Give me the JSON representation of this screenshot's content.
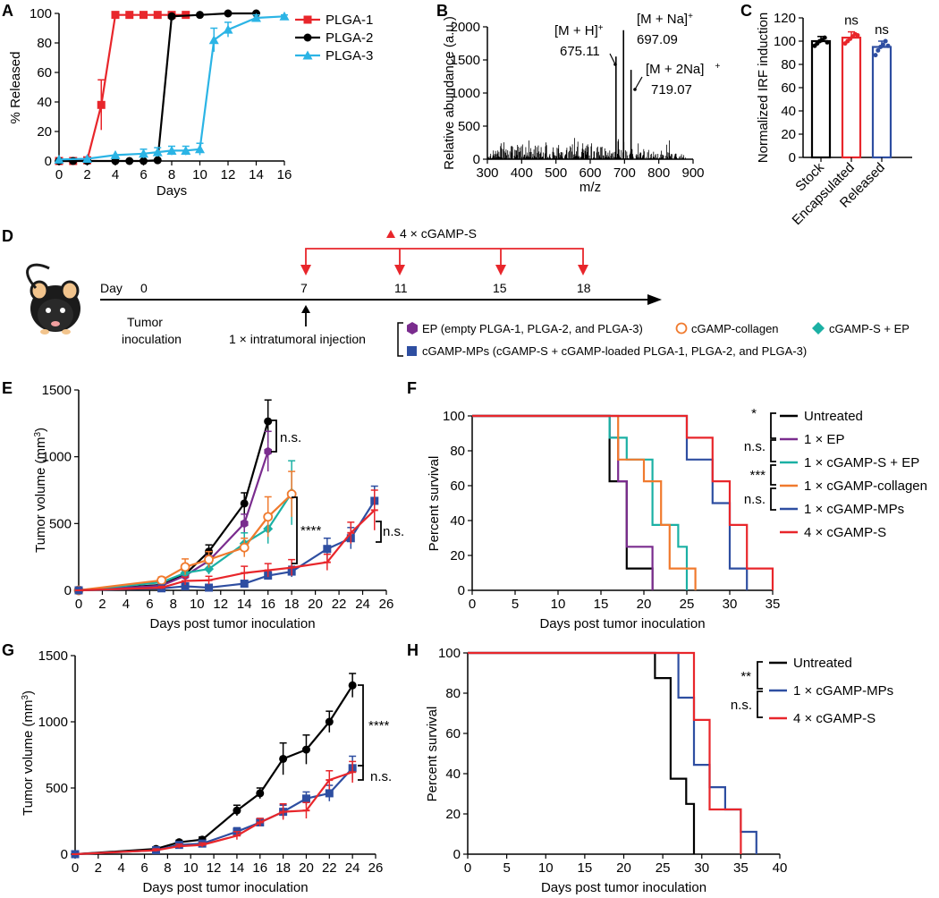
{
  "panel_labels": {
    "A": "A",
    "B": "B",
    "C": "C",
    "D": "D",
    "E": "E",
    "F": "F",
    "G": "G",
    "H": "H"
  },
  "colors": {
    "plga1": "#e8262b",
    "plga2": "#000000",
    "plga3": "#2bb4e5",
    "black": "#000000",
    "purple": "#7a2c8e",
    "teal": "#1bb0a4",
    "orange": "#f07a2e",
    "blue": "#2e4ea1",
    "red": "#e8262b"
  },
  "chart_data": [
    {
      "id": "A",
      "type": "line",
      "xlabel": "Days",
      "ylabel": "% Released",
      "xlim": [
        0,
        16
      ],
      "ylim": [
        0,
        100
      ],
      "xticks": [
        0,
        2,
        4,
        6,
        8,
        10,
        12,
        14,
        16
      ],
      "yticks": [
        0,
        20,
        40,
        60,
        80,
        100
      ],
      "series": [
        {
          "name": "PLGA-1",
          "color": "#e8262b",
          "marker": "square",
          "x": [
            0,
            1,
            2,
            3,
            4,
            5,
            6,
            7,
            8,
            9
          ],
          "y": [
            0,
            0,
            0.5,
            38,
            99,
            99,
            99,
            99,
            99,
            99
          ],
          "err": [
            0,
            0,
            0,
            17,
            0,
            0,
            0,
            0,
            0,
            0
          ]
        },
        {
          "name": "PLGA-2",
          "color": "#000000",
          "marker": "circle",
          "x": [
            0,
            1,
            2,
            4,
            5,
            6,
            7,
            8,
            10,
            12,
            14
          ],
          "y": [
            0,
            0,
            0,
            0,
            0,
            0,
            0.5,
            98,
            99,
            100,
            100
          ],
          "err": [
            0,
            0,
            0,
            0,
            0,
            0,
            0,
            0,
            0,
            0,
            0
          ]
        },
        {
          "name": "PLGA-3",
          "color": "#2bb4e5",
          "marker": "triangle",
          "x": [
            0,
            2,
            4,
            6,
            7,
            8,
            9,
            10,
            11,
            12,
            14,
            16
          ],
          "y": [
            1,
            1.5,
            4,
            5,
            6,
            7,
            7,
            8,
            82,
            89,
            97,
            98
          ],
          "err": [
            0,
            0,
            0,
            3,
            3,
            3,
            3,
            4,
            8,
            5,
            2,
            1
          ]
        }
      ]
    },
    {
      "id": "B",
      "type": "spectrum",
      "xlabel": "m/z",
      "ylabel": "Relative abundance (a.u.)",
      "xlim": [
        300,
        900
      ],
      "ylim": [
        0,
        2000
      ],
      "xticks": [
        300,
        400,
        500,
        600,
        700,
        800,
        900
      ],
      "yticks": [
        0,
        500,
        1000,
        1500,
        2000
      ],
      "peaks": [
        {
          "x": 675.11,
          "y": 1550
        },
        {
          "x": 697.09,
          "y": 1950
        },
        {
          "x": 719.07,
          "y": 1350
        }
      ],
      "annotations": [
        {
          "ion": "[M + H]",
          "charge": "+",
          "mz": "675.11"
        },
        {
          "ion": "[M + Na]",
          "charge": "+",
          "mz": "697.09"
        },
        {
          "ion": "[M + 2Na]",
          "charge": "+",
          "mz": "719.07"
        }
      ]
    },
    {
      "id": "C",
      "type": "bar",
      "ylabel": "Normalized IRF induction",
      "ylim": [
        0,
        120
      ],
      "yticks": [
        0,
        20,
        40,
        60,
        80,
        100,
        120
      ],
      "categories": [
        "Stock",
        "Encapsulated",
        "Released"
      ],
      "values": [
        100,
        103,
        95
      ],
      "errors": [
        4,
        5,
        5
      ],
      "colors": [
        "#000000",
        "#e8262b",
        "#2e4ea1"
      ],
      "significance": [
        "",
        "ns",
        "ns"
      ],
      "points": [
        [
          96,
          98,
          100,
          101,
          103,
          99
        ],
        [
          98,
          100,
          102,
          104,
          106,
          105
        ],
        [
          88,
          92,
          95,
          97,
          100,
          96
        ]
      ]
    },
    {
      "id": "E",
      "type": "line",
      "xlabel": "Days post tumor inoculation",
      "ylabel": "Tumor volume (mm",
      "ylabel_sup": "3",
      "ylabel_end": ")",
      "xlim": [
        0,
        26
      ],
      "ylim": [
        0,
        1500
      ],
      "xticks": [
        0,
        2,
        4,
        6,
        8,
        10,
        12,
        14,
        16,
        18,
        20,
        22,
        24,
        26
      ],
      "yticks": [
        0,
        500,
        1000,
        1500
      ],
      "series": [
        {
          "name": "Untreated",
          "color": "#000000",
          "marker": "circle",
          "x": [
            0,
            7,
            9,
            11,
            14,
            16
          ],
          "y": [
            0,
            40,
            120,
            290,
            650,
            1265
          ],
          "err": [
            0,
            10,
            30,
            50,
            80,
            160
          ]
        },
        {
          "name": "1 × EP",
          "color": "#7a2c8e",
          "marker": "hexagon",
          "x": [
            0,
            7,
            9,
            11,
            14,
            16
          ],
          "y": [
            0,
            35,
            110,
            220,
            500,
            1040
          ],
          "err": [
            0,
            10,
            25,
            40,
            70,
            150
          ]
        },
        {
          "name": "1 × cGAMP-S + EP",
          "color": "#1bb0a4",
          "marker": "diamond",
          "x": [
            0,
            7,
            9,
            11,
            14,
            16,
            18
          ],
          "y": [
            0,
            60,
            130,
            160,
            350,
            460,
            730
          ],
          "err": [
            0,
            20,
            40,
            40,
            80,
            110,
            240
          ]
        },
        {
          "name": "1 × cGAMP-collagen",
          "color": "#f07a2e",
          "marker": "ocircle",
          "x": [
            0,
            7,
            9,
            11,
            14,
            16,
            18
          ],
          "y": [
            0,
            75,
            175,
            230,
            320,
            550,
            720
          ],
          "err": [
            0,
            25,
            60,
            60,
            70,
            150,
            170
          ]
        },
        {
          "name": "1 × cGAMP-MPs",
          "color": "#2e4ea1",
          "marker": "square",
          "x": [
            0,
            7,
            9,
            11,
            14,
            16,
            18,
            21,
            23,
            25
          ],
          "y": [
            0,
            15,
            30,
            20,
            50,
            110,
            140,
            310,
            390,
            670
          ],
          "err": [
            0,
            5,
            10,
            10,
            20,
            30,
            40,
            80,
            80,
            110
          ]
        },
        {
          "name": "4 × cGAMP-S",
          "color": "#e8262b",
          "marker": "tick",
          "x": [
            0,
            7,
            9,
            11,
            14,
            16,
            18,
            21,
            23,
            25
          ],
          "y": [
            0,
            20,
            70,
            75,
            130,
            150,
            170,
            210,
            430,
            600
          ],
          "err": [
            0,
            10,
            30,
            30,
            50,
            50,
            60,
            60,
            80,
            150
          ]
        }
      ],
      "significance": [
        "n.s.",
        "****",
        "n.s."
      ]
    },
    {
      "id": "F",
      "type": "survival",
      "xlabel": "Days post tumor inoculation",
      "ylabel": "Percent survival",
      "xlim": [
        0,
        35
      ],
      "ylim": [
        0,
        100
      ],
      "xticks": [
        0,
        5,
        10,
        15,
        20,
        25,
        30,
        35
      ],
      "yticks": [
        0,
        20,
        40,
        60,
        80,
        100
      ],
      "series": [
        {
          "name": "Untreated",
          "color": "#000000",
          "steps": [
            [
              0,
              100
            ],
            [
              16,
              100
            ],
            [
              16,
              62.5
            ],
            [
              18,
              62.5
            ],
            [
              18,
              12.5
            ],
            [
              21,
              12.5
            ],
            [
              21,
              0
            ]
          ]
        },
        {
          "name": "1 × EP",
          "color": "#7a2c8e",
          "steps": [
            [
              0,
              100
            ],
            [
              16,
              100
            ],
            [
              16,
              87.5
            ],
            [
              17,
              87.5
            ],
            [
              17,
              62.5
            ],
            [
              18,
              62.5
            ],
            [
              18,
              25
            ],
            [
              21,
              25
            ],
            [
              21,
              0
            ]
          ]
        },
        {
          "name": "1 × cGAMP-S + EP",
          "color": "#1bb0a4",
          "steps": [
            [
              0,
              100
            ],
            [
              16,
              100
            ],
            [
              16,
              87.5
            ],
            [
              18,
              87.5
            ],
            [
              18,
              75
            ],
            [
              21,
              75
            ],
            [
              21,
              37.5
            ],
            [
              24,
              37.5
            ],
            [
              24,
              25
            ],
            [
              25,
              25
            ],
            [
              25,
              0
            ]
          ]
        },
        {
          "name": "1 × cGAMP-collagen",
          "color": "#f07a2e",
          "steps": [
            [
              0,
              100
            ],
            [
              17,
              100
            ],
            [
              17,
              75
            ],
            [
              20,
              75
            ],
            [
              20,
              62.5
            ],
            [
              22,
              62.5
            ],
            [
              22,
              37.5
            ],
            [
              23,
              37.5
            ],
            [
              23,
              12.5
            ],
            [
              26,
              12.5
            ],
            [
              26,
              0
            ]
          ]
        },
        {
          "name": "1 × cGAMP-MPs",
          "color": "#2e4ea1",
          "steps": [
            [
              0,
              100
            ],
            [
              25,
              100
            ],
            [
              25,
              75
            ],
            [
              28,
              75
            ],
            [
              28,
              50
            ],
            [
              30,
              50
            ],
            [
              30,
              12.5
            ],
            [
              32,
              12.5
            ],
            [
              32,
              0
            ]
          ]
        },
        {
          "name": "4 × cGAMP-S",
          "color": "#e8262b",
          "steps": [
            [
              0,
              100
            ],
            [
              25,
              100
            ],
            [
              25,
              87.5
            ],
            [
              28,
              87.5
            ],
            [
              28,
              62.5
            ],
            [
              30,
              62.5
            ],
            [
              30,
              37.5
            ],
            [
              32,
              37.5
            ],
            [
              32,
              12.5
            ],
            [
              35,
              12.5
            ],
            [
              35,
              0
            ]
          ]
        }
      ],
      "significance": [
        "*",
        "n.s.",
        "***",
        "n.s."
      ]
    },
    {
      "id": "G",
      "type": "line",
      "xlabel": "Days post tumor inoculation",
      "ylabel": "Tumor volume (mm",
      "ylabel_sup": "3",
      "ylabel_end": ")",
      "xlim": [
        0,
        26
      ],
      "ylim": [
        0,
        1500
      ],
      "xticks": [
        0,
        2,
        4,
        6,
        8,
        10,
        12,
        14,
        16,
        18,
        20,
        22,
        24,
        26
      ],
      "yticks": [
        0,
        500,
        1000,
        1500
      ],
      "series": [
        {
          "name": "Untreated",
          "color": "#000000",
          "marker": "circle",
          "x": [
            0,
            7,
            9,
            11,
            14,
            16,
            18,
            20,
            22,
            24
          ],
          "y": [
            0,
            40,
            90,
            110,
            330,
            460,
            720,
            790,
            1000,
            1275
          ],
          "err": [
            0,
            10,
            15,
            20,
            40,
            40,
            120,
            110,
            80,
            90
          ]
        },
        {
          "name": "1 × cGAMP-MPs",
          "color": "#2e4ea1",
          "marker": "square",
          "x": [
            0,
            7,
            9,
            11,
            14,
            16,
            18,
            20,
            22,
            24
          ],
          "y": [
            0,
            30,
            70,
            80,
            170,
            240,
            320,
            420,
            460,
            650
          ],
          "err": [
            0,
            10,
            15,
            15,
            30,
            30,
            50,
            50,
            60,
            90
          ]
        },
        {
          "name": "4 × cGAMP-S",
          "color": "#e8262b",
          "marker": "tick",
          "x": [
            0,
            7,
            9,
            11,
            14,
            16,
            18,
            20,
            22,
            24
          ],
          "y": [
            0,
            30,
            60,
            70,
            140,
            240,
            320,
            330,
            560,
            620
          ],
          "err": [
            0,
            10,
            15,
            15,
            30,
            30,
            60,
            60,
            70,
            80
          ]
        }
      ],
      "significance": [
        "****",
        "n.s."
      ]
    },
    {
      "id": "H",
      "type": "survival",
      "xlabel": "Days post tumor inoculation",
      "ylabel": "Percent survival",
      "xlim": [
        0,
        40
      ],
      "ylim": [
        0,
        100
      ],
      "xticks": [
        0,
        5,
        10,
        15,
        20,
        25,
        30,
        35,
        40
      ],
      "yticks": [
        0,
        20,
        40,
        60,
        80,
        100
      ],
      "series": [
        {
          "name": "Untreated",
          "color": "#000000",
          "steps": [
            [
              0,
              100
            ],
            [
              24,
              100
            ],
            [
              24,
              87.5
            ],
            [
              26,
              87.5
            ],
            [
              26,
              37.5
            ],
            [
              28,
              37.5
            ],
            [
              28,
              25
            ],
            [
              29,
              25
            ],
            [
              29,
              0
            ]
          ]
        },
        {
          "name": "1 × cGAMP-MPs",
          "color": "#2e4ea1",
          "steps": [
            [
              0,
              100
            ],
            [
              27,
              100
            ],
            [
              27,
              77.8
            ],
            [
              29,
              77.8
            ],
            [
              29,
              44.4
            ],
            [
              31,
              44.4
            ],
            [
              31,
              33.3
            ],
            [
              33,
              33.3
            ],
            [
              33,
              22.2
            ],
            [
              35,
              22.2
            ],
            [
              35,
              11.1
            ],
            [
              37,
              11.1
            ],
            [
              37,
              0
            ]
          ]
        },
        {
          "name": "4 × cGAMP-S",
          "color": "#e8262b",
          "steps": [
            [
              0,
              100
            ],
            [
              29,
              100
            ],
            [
              29,
              66.7
            ],
            [
              31,
              66.7
            ],
            [
              31,
              22.2
            ],
            [
              35,
              22.2
            ],
            [
              35,
              0
            ]
          ]
        }
      ],
      "significance": [
        "**",
        "n.s."
      ]
    }
  ],
  "schedule": {
    "day_label": "Day",
    "days": [
      "0",
      "7",
      "11",
      "15",
      "18"
    ],
    "repeated_label": "4 × cGAMP-S",
    "tumor_label_1": "Tumor",
    "tumor_label_2": "inoculation",
    "single_label": "1 × intratumoral injection",
    "legend_1": "EP (empty PLGA-1, PLGA-2, and PLGA-3)",
    "legend_2": "cGAMP-collagen",
    "legend_3": "cGAMP-S + EP",
    "legend_4": "cGAMP-MPs (cGAMP-S + cGAMP-loaded PLGA-1, PLGA-2, and PLGA-3)"
  }
}
